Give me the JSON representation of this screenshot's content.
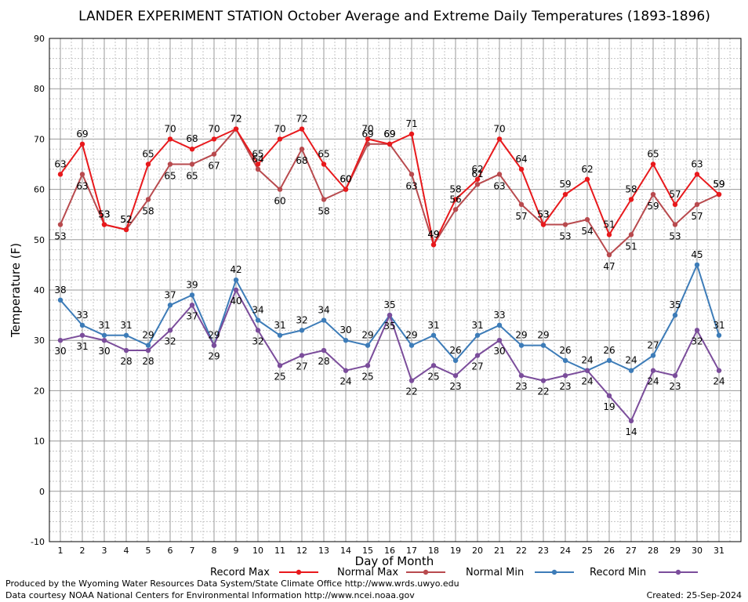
{
  "chart_data": {
    "type": "line",
    "title": "LANDER EXPERIMENT STATION October Average and Extreme Daily Temperatures (1893-1896)",
    "xlabel": "Day of Month",
    "ylabel": "Temperature (F)",
    "ylim": [
      -10,
      90
    ],
    "y_ticks": [
      "90",
      "80",
      "70",
      "60",
      "50",
      "40",
      "30",
      "20",
      "10",
      "0",
      "-10"
    ],
    "x": [
      "1",
      "2",
      "3",
      "4",
      "5",
      "6",
      "7",
      "8",
      "9",
      "10",
      "11",
      "12",
      "13",
      "14",
      "15",
      "16",
      "17",
      "18",
      "19",
      "20",
      "21",
      "22",
      "23",
      "24",
      "25",
      "26",
      "27",
      "28",
      "29",
      "30",
      "31"
    ],
    "grid": true,
    "legend_position": "bottom",
    "series": [
      {
        "name": "Record Max",
        "color": "#e8191c",
        "values": [
          63,
          69,
          53,
          52,
          65,
          70,
          68,
          70,
          72,
          65,
          70,
          72,
          65,
          60,
          70,
          69,
          71,
          49,
          58,
          62,
          70,
          64,
          53,
          59,
          62,
          51,
          58,
          65,
          57,
          63,
          59
        ]
      },
      {
        "name": "Normal Max",
        "color": "#b84a4e",
        "values": [
          53,
          63,
          53,
          52,
          58,
          65,
          65,
          67,
          72,
          64,
          60,
          68,
          58,
          60,
          69,
          69,
          63,
          49,
          56,
          61,
          63,
          57,
          53,
          53,
          54,
          47,
          51,
          59,
          53,
          57,
          59
        ]
      },
      {
        "name": "Normal Min",
        "color": "#3d7cb8",
        "values": [
          38,
          33,
          31,
          31,
          29,
          37,
          39,
          29,
          42,
          34,
          31,
          32,
          34,
          30,
          29,
          35,
          29,
          31,
          26,
          31,
          33,
          29,
          29,
          26,
          24,
          26,
          24,
          27,
          35,
          45,
          31
        ]
      },
      {
        "name": "Record Min",
        "color": "#7b4d9b",
        "values": [
          30,
          31,
          30,
          28,
          28,
          32,
          37,
          29,
          40,
          32,
          25,
          27,
          28,
          24,
          25,
          35,
          22,
          25,
          23,
          27,
          30,
          23,
          22,
          23,
          24,
          19,
          14,
          24,
          23,
          32,
          24
        ]
      }
    ]
  },
  "footer": {
    "produced_by": "Produced by the Wyoming Water Resources Data System/State Climate Office http://www.wrds.uwyo.edu",
    "data_courtesy": "Data courtesy NOAA National Centers for Environmental Information http://www.ncei.noaa.gov",
    "created": "Created:  25-Sep-2024"
  }
}
